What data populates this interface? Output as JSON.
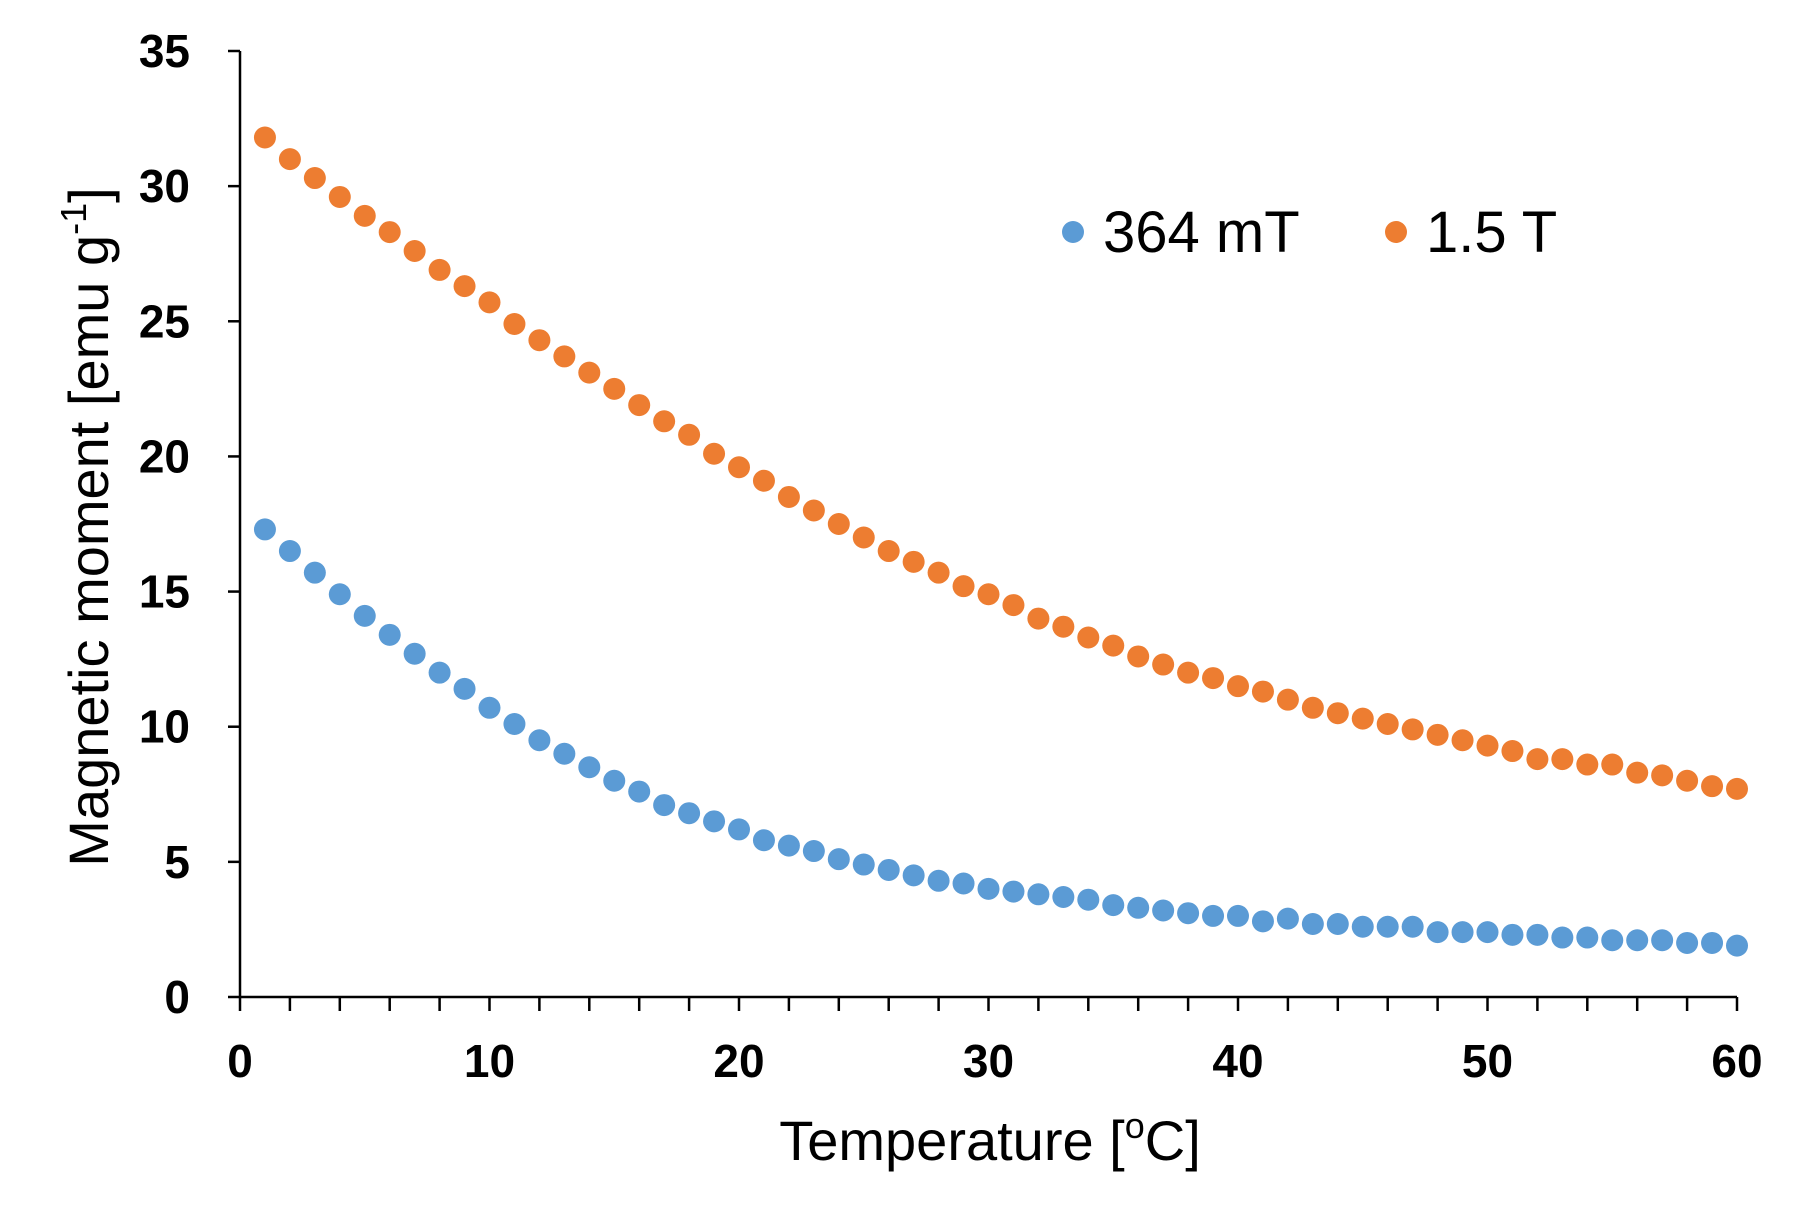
{
  "chart_data": {
    "type": "scatter",
    "title": "",
    "xlabel": "Temperature [",
    "xlabel_sup": "o",
    "xlabel_tail": "C]",
    "ylabel": "Magnetic moment [emu g",
    "ylabel_sup": "-1",
    "ylabel_tail": "]",
    "xlim": [
      0,
      60
    ],
    "ylim": [
      0,
      35
    ],
    "xticks": [
      0,
      10,
      20,
      30,
      40,
      50,
      60
    ],
    "yticks": [
      0,
      5,
      10,
      15,
      20,
      25,
      30,
      35
    ],
    "xtick_labels": [
      "0",
      "10",
      "20",
      "30",
      "40",
      "50",
      "60"
    ],
    "ytick_labels": [
      "0",
      "5",
      "10",
      "15",
      "20",
      "25",
      "30",
      "35"
    ],
    "legend_position": "top-right",
    "series": [
      {
        "name": "364 mT",
        "color": "#5B9BD5",
        "x": [
          1,
          2,
          3,
          4,
          5,
          6,
          7,
          8,
          9,
          10,
          11,
          12,
          13,
          14,
          15,
          16,
          17,
          18,
          19,
          20,
          21,
          22,
          23,
          24,
          25,
          26,
          27,
          28,
          29,
          30,
          31,
          32,
          33,
          34,
          35,
          36,
          37,
          38,
          39,
          40,
          41,
          42,
          43,
          44,
          45,
          46,
          47,
          48,
          49,
          50,
          51,
          52,
          53,
          54,
          55,
          56,
          57,
          58,
          59,
          60
        ],
        "y": [
          17.3,
          16.5,
          15.7,
          14.9,
          14.1,
          13.4,
          12.7,
          12.0,
          11.4,
          10.7,
          10.1,
          9.5,
          9.0,
          8.5,
          8.0,
          7.6,
          7.1,
          6.8,
          6.5,
          6.2,
          5.8,
          5.6,
          5.4,
          5.1,
          4.9,
          4.7,
          4.5,
          4.3,
          4.2,
          4.0,
          3.9,
          3.8,
          3.7,
          3.6,
          3.4,
          3.3,
          3.2,
          3.1,
          3.0,
          3.0,
          2.8,
          2.9,
          2.7,
          2.7,
          2.6,
          2.6,
          2.6,
          2.4,
          2.4,
          2.4,
          2.3,
          2.3,
          2.2,
          2.2,
          2.1,
          2.1,
          2.1,
          2.0,
          2.0,
          1.9
        ]
      },
      {
        "name": "1.5 T",
        "color": "#ED7D31",
        "x": [
          1,
          2,
          3,
          4,
          5,
          6,
          7,
          8,
          9,
          10,
          11,
          12,
          13,
          14,
          15,
          16,
          17,
          18,
          19,
          20,
          21,
          22,
          23,
          24,
          25,
          26,
          27,
          28,
          29,
          30,
          31,
          32,
          33,
          34,
          35,
          36,
          37,
          38,
          39,
          40,
          41,
          42,
          43,
          44,
          45,
          46,
          47,
          48,
          49,
          50,
          51,
          52,
          53,
          54,
          55,
          56,
          57,
          58,
          59,
          60
        ],
        "y": [
          31.8,
          31.0,
          30.3,
          29.6,
          28.9,
          28.3,
          27.6,
          26.9,
          26.3,
          25.7,
          24.9,
          24.3,
          23.7,
          23.1,
          22.5,
          21.9,
          21.3,
          20.8,
          20.1,
          19.6,
          19.1,
          18.5,
          18.0,
          17.5,
          17.0,
          16.5,
          16.1,
          15.7,
          15.2,
          14.9,
          14.5,
          14.0,
          13.7,
          13.3,
          13.0,
          12.6,
          12.3,
          12.0,
          11.8,
          11.5,
          11.3,
          11.0,
          10.7,
          10.5,
          10.3,
          10.1,
          9.9,
          9.7,
          9.5,
          9.3,
          9.1,
          8.8,
          8.8,
          8.6,
          8.6,
          8.3,
          8.2,
          8.0,
          7.8,
          7.7
        ]
      }
    ]
  }
}
